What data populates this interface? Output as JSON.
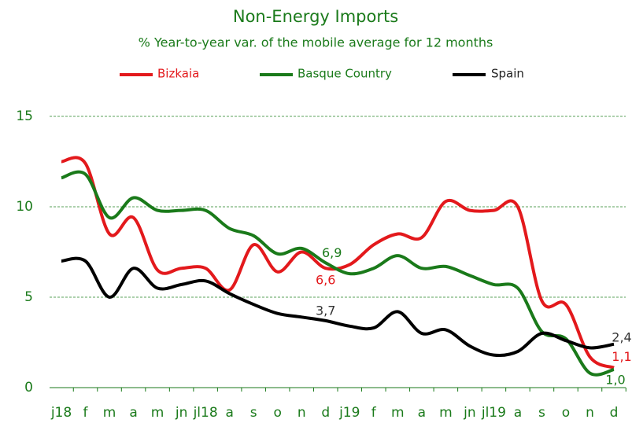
{
  "chart_data": {
    "type": "line",
    "title": "Non-Energy Imports",
    "subtitle": "% Year-to-year var. of the mobile average for 12 months",
    "categories": [
      "j18",
      "f",
      "m",
      "a",
      "m",
      "jn",
      "jl18",
      "a",
      "s",
      "o",
      "n",
      "d",
      "j19",
      "f",
      "m",
      "a",
      "m",
      "jn",
      "jl19",
      "a",
      "s",
      "o",
      "n",
      "d"
    ],
    "series": [
      {
        "name": "Bizkaia",
        "color": "#e3191c",
        "values": [
          12.5,
          12.4,
          8.5,
          9.4,
          6.5,
          6.6,
          6.6,
          5.4,
          7.9,
          6.4,
          7.5,
          6.6,
          6.8,
          7.9,
          8.5,
          8.3,
          10.3,
          9.8,
          9.8,
          10.0,
          4.8,
          4.6,
          1.7,
          1.1
        ],
        "value_labels": [
          null,
          null,
          null,
          null,
          null,
          null,
          null,
          null,
          null,
          null,
          null,
          "6,6",
          null,
          null,
          null,
          null,
          null,
          null,
          null,
          null,
          null,
          null,
          null,
          "1,1"
        ]
      },
      {
        "name": "Basque Country",
        "color": "#1a7a1a",
        "values": [
          11.6,
          11.8,
          9.4,
          10.5,
          9.8,
          9.8,
          9.8,
          8.8,
          8.4,
          7.4,
          7.7,
          6.9,
          6.3,
          6.6,
          7.3,
          6.6,
          6.7,
          6.2,
          5.7,
          5.5,
          3.1,
          2.7,
          0.8,
          1.0
        ],
        "value_labels": [
          null,
          null,
          null,
          null,
          null,
          null,
          null,
          null,
          null,
          null,
          null,
          "6,9",
          null,
          null,
          null,
          null,
          null,
          null,
          null,
          null,
          null,
          null,
          null,
          "1,0"
        ]
      },
      {
        "name": "Spain",
        "color": "#000000",
        "values": [
          7.0,
          7.0,
          5.0,
          6.6,
          5.5,
          5.7,
          5.9,
          5.2,
          4.6,
          4.1,
          3.9,
          3.7,
          3.4,
          3.3,
          4.2,
          3.0,
          3.2,
          2.3,
          1.8,
          2.0,
          3.0,
          2.6,
          2.2,
          2.4
        ],
        "value_labels": [
          null,
          null,
          null,
          null,
          null,
          null,
          null,
          null,
          null,
          null,
          null,
          "3,7",
          null,
          null,
          null,
          null,
          null,
          null,
          null,
          null,
          null,
          null,
          null,
          "2,4"
        ]
      }
    ],
    "ylim": [
      0,
      15
    ],
    "yticks": [
      0,
      5,
      10,
      15
    ],
    "grid": true,
    "legend": "top"
  }
}
